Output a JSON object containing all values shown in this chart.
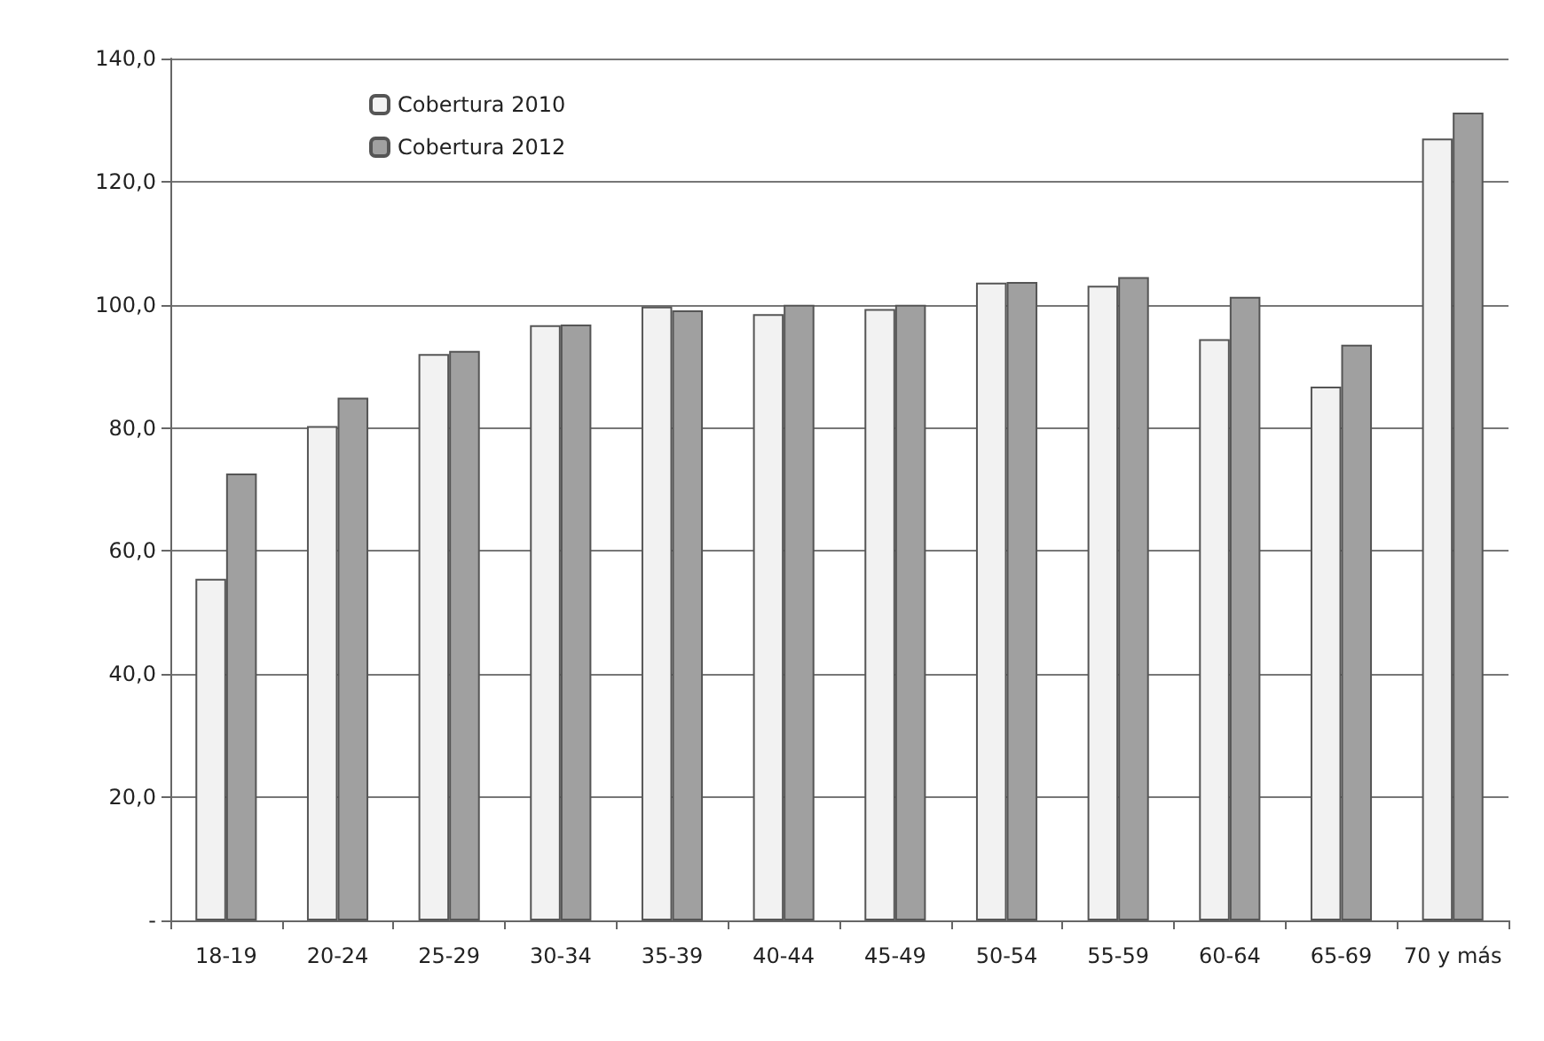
{
  "chart_data": {
    "type": "bar",
    "categories": [
      "18-19",
      "20-24",
      "25-29",
      "30-34",
      "35-39",
      "40-44",
      "45-49",
      "50-54",
      "55-59",
      "60-64",
      "65-69",
      "70 y más"
    ],
    "series": [
      {
        "name": "Cobertura 2010",
        "color": "#f2f2f2",
        "values": [
          55.5,
          80.3,
          92.0,
          96.7,
          99.7,
          98.5,
          99.3,
          103.6,
          103.1,
          94.4,
          86.7,
          127.0
        ]
      },
      {
        "name": "Cobertura 2012",
        "color": "#a0a0a0",
        "values": [
          72.6,
          84.9,
          92.5,
          96.8,
          99.1,
          100.0,
          100.0,
          103.7,
          104.5,
          101.3,
          93.5,
          131.2
        ]
      }
    ],
    "ylim": [
      0,
      140
    ],
    "yticks": [
      {
        "value": 0,
        "label": "-"
      },
      {
        "value": 20,
        "label": "20,0"
      },
      {
        "value": 40,
        "label": "40,0"
      },
      {
        "value": 60,
        "label": "60,0"
      },
      {
        "value": 80,
        "label": "80,0"
      },
      {
        "value": 100,
        "label": "100,0"
      },
      {
        "value": 120,
        "label": "120,0"
      },
      {
        "value": 140,
        "label": "140,0"
      }
    ],
    "grid": "y",
    "legend": "top left"
  }
}
